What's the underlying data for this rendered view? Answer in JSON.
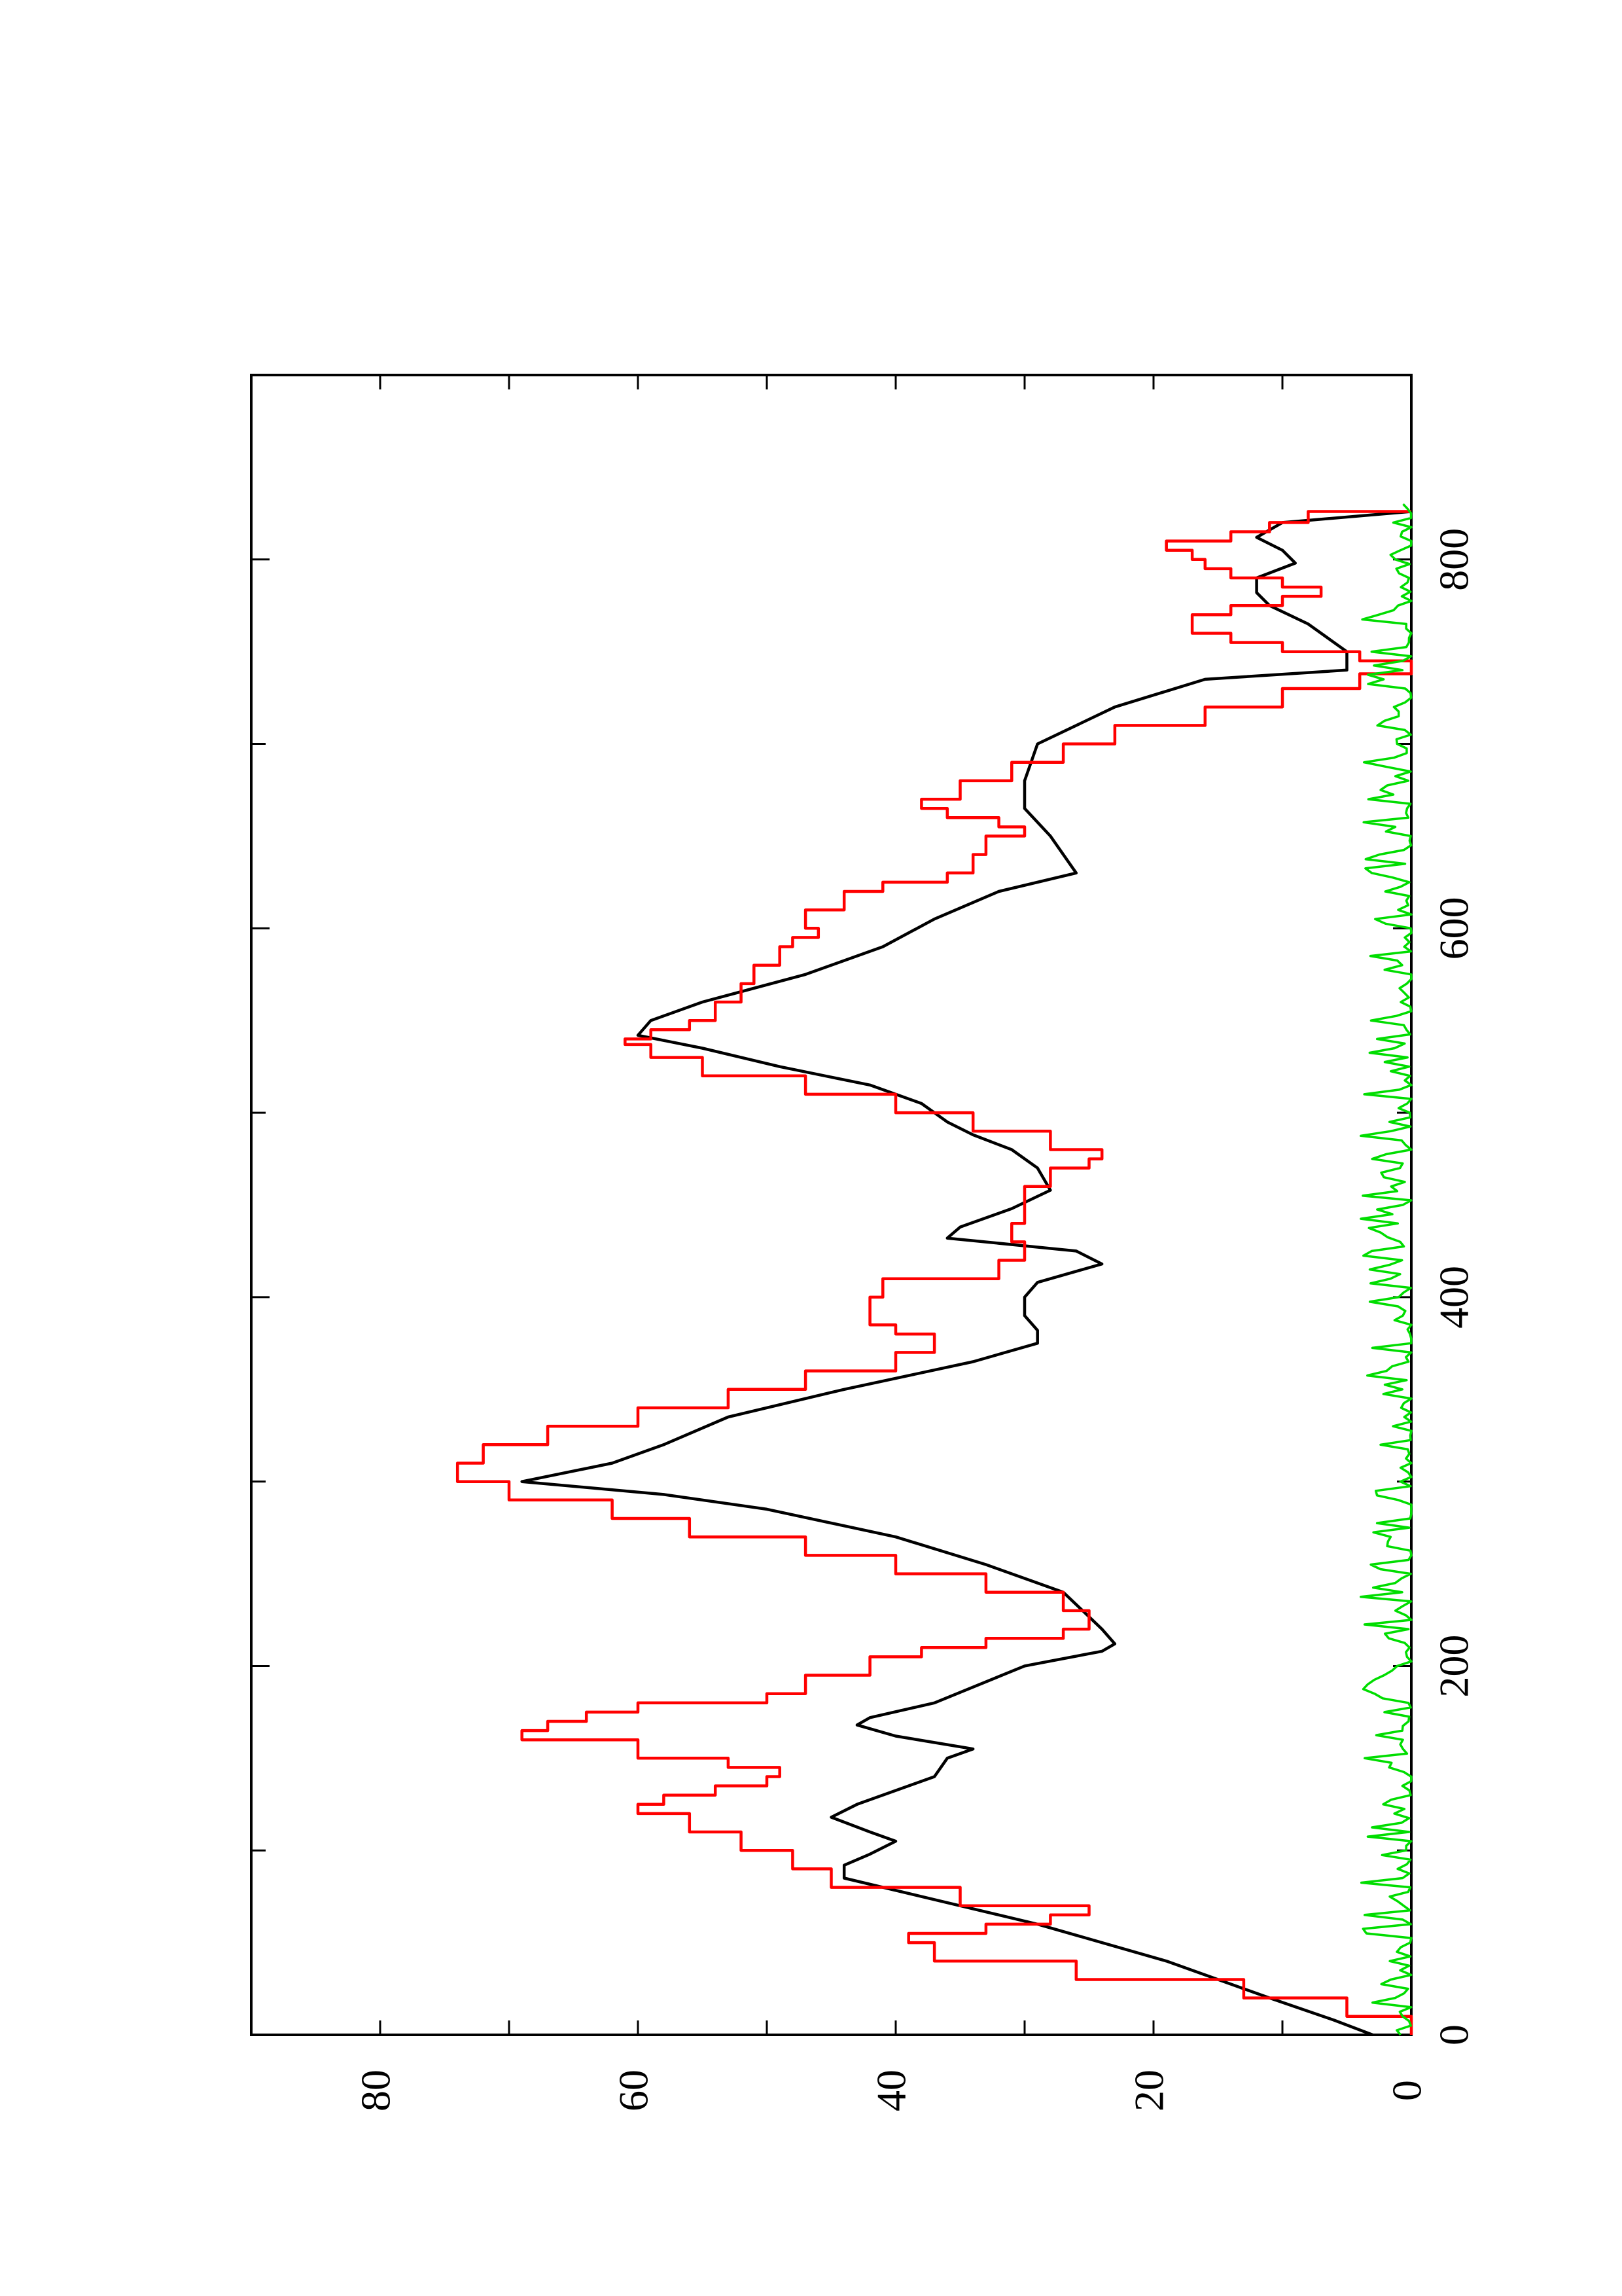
{
  "chart_data": {
    "type": "line",
    "orientation": "rotated 90 degrees counter-clockwise",
    "title": "",
    "xlabel": "",
    "ylabel": "",
    "xlim": [
      0,
      900
    ],
    "ylim": [
      0,
      90
    ],
    "x_ticks": [
      {
        "value": 0,
        "label": "0"
      },
      {
        "value": 200,
        "label": "200"
      },
      {
        "value": 400,
        "label": "400"
      },
      {
        "value": 600,
        "label": "600"
      },
      {
        "value": 800,
        "label": "800"
      }
    ],
    "y_ticks": [
      {
        "value": 0,
        "label": "0"
      },
      {
        "value": 20,
        "label": "20"
      },
      {
        "value": 40,
        "label": "40"
      },
      {
        "value": 60,
        "label": "60"
      },
      {
        "value": 80,
        "label": "80"
      }
    ],
    "grid": false,
    "legend": "none",
    "series": [
      {
        "color": "#000000",
        "style": "smooth line",
        "x": [
          0,
          8,
          20,
          40,
          60,
          75,
          85,
          92,
          98,
          105,
          110,
          118,
          125,
          140,
          150,
          155,
          162,
          168,
          172,
          180,
          200,
          208,
          212,
          220,
          240,
          255,
          270,
          285,
          293,
          300,
          310,
          320,
          335,
          350,
          365,
          375,
          382,
          390,
          400,
          408,
          418,
          425,
          432,
          438,
          448,
          458,
          470,
          480,
          488,
          495,
          505,
          515,
          525,
          535,
          542,
          550,
          560,
          575,
          590,
          605,
          620,
          630,
          650,
          665,
          680,
          700,
          720,
          735,
          740,
          750,
          765,
          775,
          782,
          790,
          798,
          805,
          812,
          820,
          826
        ],
        "y": [
          3,
          6,
          11,
          19,
          29,
          38,
          44,
          44,
          42,
          40,
          42,
          45,
          43,
          37,
          36,
          34,
          40,
          43,
          42,
          37,
          30,
          24,
          23,
          24,
          27,
          33,
          40,
          50,
          58,
          69,
          62,
          58,
          53,
          44,
          34,
          29,
          29,
          30,
          30,
          29,
          24,
          26,
          36,
          35,
          31,
          28,
          29,
          31,
          34,
          36,
          38,
          42,
          49,
          55,
          60,
          59,
          55,
          47,
          41,
          37,
          32,
          26,
          28,
          30,
          30,
          29,
          23,
          16,
          5,
          5,
          8,
          11,
          12,
          12,
          9,
          10,
          12,
          10,
          0
        ]
      },
      {
        "color": "#ff0000",
        "style": "stepped line",
        "x": [
          0,
          10,
          20,
          30,
          40,
          50,
          55,
          60,
          65,
          70,
          80,
          90,
          100,
          110,
          120,
          125,
          130,
          135,
          140,
          145,
          150,
          160,
          165,
          170,
          175,
          180,
          185,
          195,
          205,
          210,
          215,
          220,
          230,
          240,
          250,
          260,
          270,
          280,
          290,
          300,
          310,
          320,
          330,
          340,
          350,
          360,
          370,
          380,
          385,
          390,
          400,
          410,
          420,
          430,
          440,
          450,
          460,
          470,
          475,
          480,
          490,
          500,
          510,
          520,
          530,
          537,
          540,
          545,
          550,
          560,
          570,
          580,
          590,
          595,
          600,
          610,
          620,
          625,
          630,
          640,
          650,
          655,
          660,
          665,
          670,
          680,
          690,
          700,
          710,
          720,
          730,
          738,
          745,
          750,
          755,
          760,
          765,
          770,
          775,
          780,
          785,
          790,
          795,
          800,
          805,
          810,
          815,
          820,
          826
        ],
        "y": [
          0,
          5,
          13,
          26,
          37,
          39,
          33,
          28,
          25,
          35,
          45,
          48,
          52,
          56,
          60,
          58,
          54,
          50,
          49,
          53,
          60,
          69,
          67,
          64,
          60,
          50,
          47,
          42,
          38,
          33,
          27,
          25,
          27,
          33,
          40,
          47,
          56,
          62,
          70,
          74,
          72,
          67,
          60,
          53,
          47,
          40,
          37,
          40,
          42,
          42,
          41,
          32,
          30,
          31,
          30,
          30,
          28,
          25,
          24,
          28,
          34,
          40,
          47,
          55,
          59,
          61,
          59,
          56,
          54,
          52,
          51,
          49,
          48,
          46,
          47,
          44,
          41,
          36,
          34,
          33,
          30,
          32,
          36,
          38,
          35,
          31,
          27,
          23,
          16,
          10,
          4,
          0,
          4,
          10,
          14,
          17,
          17,
          14,
          10,
          7,
          10,
          14,
          16,
          17,
          19,
          14,
          11,
          8,
          0
        ]
      },
      {
        "color": "#00dd00",
        "style": "noisy line",
        "x_start": 0,
        "x_end": 830,
        "approx_range": [
          0,
          4
        ]
      }
    ]
  }
}
